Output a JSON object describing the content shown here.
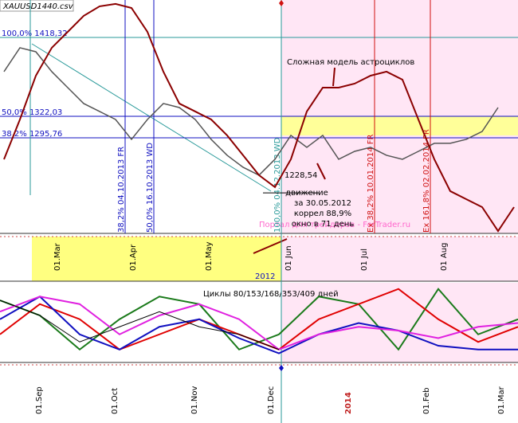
{
  "chart_data": [
    {
      "type": "line",
      "title": "XAUUSD1440.csv",
      "ylim": [
        1179,
        1464
      ],
      "levels": [
        {
          "value": 1418.32,
          "label": "100,0% 1418,32"
        },
        {
          "value": 1322.03,
          "label": "50,0% 1322,03"
        },
        {
          "value": 1295.76,
          "label": "38,2% 1295,76"
        }
      ],
      "price_label": {
        "value": 1228.54,
        "label": "1228,54"
      },
      "series": [
        {
          "color": "#555555",
          "values": [
            1376.5,
            1405.7,
            1400.8,
            1376.5,
            1357.0,
            1337.6,
            1327.9,
            1318.1,
            1293.8,
            1318.1,
            1337.6,
            1332.7,
            1318.1,
            1293.8,
            1274.4,
            1259.8,
            1250.1,
            1269.5,
            1298.7,
            1284.1,
            1298.7,
            1269.5,
            1279.2,
            1284.1,
            1274.4,
            1269.5,
            1279.2,
            1289.0,
            1289.0,
            1293.8,
            1303.5,
            1332.7
          ]
        },
        {
          "name": "Сложная модель астроциклов",
          "color": "#8b0000",
          "values": [
            1269.5,
            1318.1,
            1371.6,
            1405.7,
            1425.1,
            1444.6,
            1456.3,
            1459.2,
            1454.3,
            1425.1,
            1376.5,
            1337.6,
            1327.9,
            1318.1,
            1298.7,
            1274.4,
            1250.1,
            1235.5,
            1269.5,
            1327.9,
            1357.0,
            1357.0,
            1361.9,
            1371.6,
            1376.5,
            1366.8,
            1318.1,
            1269.5,
            1230.6,
            1220.8,
            1211.1,
            1181.9,
            1211.1
          ]
        }
      ],
      "note": [
        "движение",
        "за 30.05.2012",
        "коррел 88,9%",
        "окно в 71 день"
      ],
      "watermark": "Портал для трейдеров - ForTrader.ru",
      "vertical_labels": [
        "38,2% 04.10.2013 FR",
        "50,0% 16.10.2013 WD",
        "100,0% 04.12.2013 WD",
        "Ex 38,2% 10.01.2014 FR",
        "Ex 161,8% 02.02.2014 FR"
      ],
      "date_labels": [
        "01.Mar",
        "01.Apr",
        "01.May",
        "01 Jun",
        "01 Jul",
        "01 Aug"
      ],
      "year": "2012"
    },
    {
      "type": "line",
      "title": "Циклы 80/153/168/353/409 дней",
      "ylim": [
        0,
        100
      ],
      "series": [
        {
          "color": "#1a7a1a",
          "values": [
            80,
            60,
            15,
            55,
            85,
            75,
            15,
            35,
            85,
            75,
            15,
            95,
            35,
            55
          ]
        },
        {
          "color": "#e00000",
          "values": [
            35,
            75,
            55,
            15,
            35,
            55,
            35,
            15,
            55,
            75,
            95,
            55,
            25,
            45
          ]
        },
        {
          "color": "#1010c0",
          "values": [
            55,
            85,
            35,
            15,
            45,
            55,
            30,
            10,
            35,
            50,
            40,
            20,
            15,
            15
          ]
        },
        {
          "color": "#e020e0",
          "values": [
            65,
            85,
            75,
            35,
            60,
            75,
            55,
            15,
            35,
            45,
            40,
            30,
            45,
            50
          ]
        },
        {
          "color": "#000000",
          "values": [
            80,
            60,
            25,
            45,
            65,
            45,
            35,
            15
          ]
        }
      ],
      "date_labels": [
        "01.Sep",
        "01.Oct",
        "01.Nov",
        "01.Dec",
        "2014",
        "01.Feb",
        "01.Mar"
      ]
    }
  ]
}
